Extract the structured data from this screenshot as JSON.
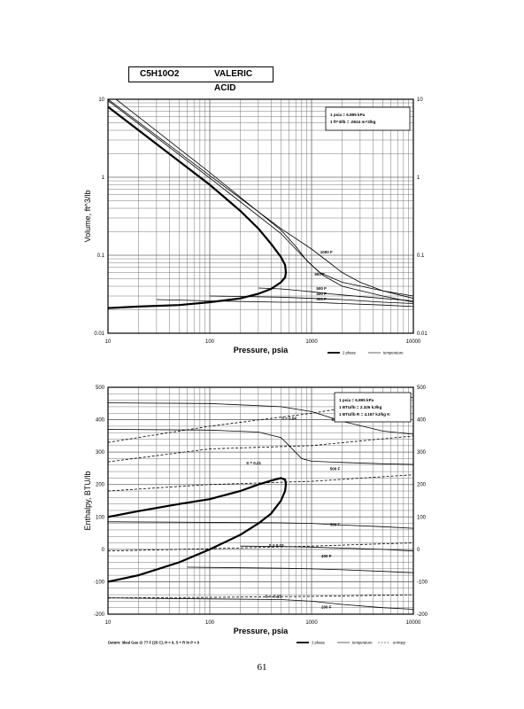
{
  "header": {
    "formula": "C5H10O2",
    "name": "VALERIC ACID"
  },
  "page_number": "61",
  "chart_data": [
    {
      "type": "line",
      "xlabel": "Pressure, psia",
      "ylabel": "Volume, ft^3/lb",
      "x_scale": "log",
      "y_scale": "log",
      "xlim": [
        10,
        10000
      ],
      "ylim": [
        0.01,
        10
      ],
      "x_ticks": [
        "10",
        "100",
        "1000",
        "10000"
      ],
      "y_ticks": [
        "0.01",
        "0.1",
        "1",
        "10"
      ],
      "conversion_note": [
        "1 psia = 6.895 kPa",
        "1 ft^3/lb = .0624 m^3/kg"
      ],
      "legend": [
        "2 phase",
        "temperature"
      ],
      "colors": {
        "line": "#000000",
        "grid": "#555555"
      },
      "series": [
        {
          "name": "2 phase",
          "x": [
            10,
            20,
            50,
            100,
            200,
            300,
            400,
            500,
            550,
            560,
            550,
            500,
            400,
            300,
            200,
            100,
            50,
            20,
            10
          ],
          "y": [
            8,
            4,
            1.6,
            0.8,
            0.37,
            0.22,
            0.14,
            0.095,
            0.075,
            0.06,
            0.052,
            0.045,
            0.037,
            0.032,
            0.028,
            0.025,
            0.023,
            0.022,
            0.021
          ]
        },
        {
          "name": "1000 F",
          "x": [
            10,
            100,
            500,
            1000,
            1500,
            2000,
            3000,
            5000,
            10000
          ],
          "y": [
            10,
            1.05,
            0.22,
            0.12,
            0.08,
            0.06,
            0.045,
            0.035,
            0.028
          ]
        },
        {
          "name": "900 F",
          "x": [
            10,
            100,
            500,
            800,
            1000,
            1300,
            2000,
            5000,
            10000
          ],
          "y": [
            9.6,
            0.98,
            0.19,
            0.1,
            0.075,
            0.055,
            0.04,
            0.03,
            0.025
          ]
        },
        {
          "name": "temperature",
          "x": [
            12,
            100,
            500,
            700,
            900,
            1200,
            2000,
            5000,
            10000
          ],
          "y": [
            10,
            1.15,
            0.21,
            0.13,
            0.085,
            0.06,
            0.045,
            0.035,
            0.03
          ]
        },
        {
          "name": "500 F",
          "x": [
            300,
            500,
            800,
            1000,
            1500,
            2000,
            5000,
            10000
          ],
          "y": [
            0.038,
            0.037,
            0.035,
            0.034,
            0.032,
            0.031,
            0.028,
            0.026
          ]
        },
        {
          "name": "400 F",
          "x": [
            100,
            500,
            1000,
            2000,
            5000,
            10000
          ],
          "y": [
            0.03,
            0.029,
            0.028,
            0.027,
            0.025,
            0.024
          ]
        },
        {
          "name": "300 F",
          "x": [
            30,
            100,
            500,
            1000,
            2000,
            5000,
            10000
          ],
          "y": [
            0.027,
            0.026,
            0.025,
            0.025,
            0.024,
            0.023,
            0.022
          ]
        }
      ],
      "annotations": [
        "1000 F",
        "900 F",
        "500 F",
        "400 F",
        "300 F"
      ]
    },
    {
      "type": "line",
      "xlabel": "Pressure, psia",
      "ylabel": "Enthalpy, BTU/lb",
      "x_scale": "log",
      "y_scale": "linear",
      "xlim": [
        10,
        10000
      ],
      "ylim": [
        -200,
        500
      ],
      "x_ticks": [
        "10",
        "100",
        "1000",
        "10000"
      ],
      "y_ticks": [
        "-200",
        "-100",
        "0",
        "100",
        "200",
        "300",
        "400",
        "500"
      ],
      "conversion_note": [
        "1 psia = 6.895 kPa",
        "1 BTU/lb = 2.326 kJ/kg",
        "1 BTU/lb R = 4.187 kJ/kg K"
      ],
      "legend": [
        "2 phase",
        "temperature",
        "entropy"
      ],
      "footnote": "Datum: Ideal Gas @ 77 F (25 C), H = 0, S + R ln P = 0",
      "series": [
        {
          "name": "2 phase",
          "x": [
            10,
            20,
            50,
            100,
            200,
            300,
            400,
            500,
            550,
            560,
            550,
            500,
            400,
            300,
            200,
            100,
            50,
            20,
            10
          ],
          "y": [
            100,
            118,
            140,
            155,
            180,
            200,
            212,
            220,
            215,
            200,
            180,
            150,
            110,
            80,
            45,
            0,
            -40,
            -80,
            -100
          ]
        },
        {
          "name": "1000 F",
          "x": [
            10,
            100,
            500,
            1000,
            2000,
            5000,
            10000
          ],
          "y": [
            452,
            450,
            440,
            425,
            395,
            365,
            355
          ]
        },
        {
          "name": "temperature",
          "x": [
            10,
            100,
            300,
            500,
            600,
            800,
            1000,
            2000,
            5000,
            10000
          ],
          "y": [
            370,
            368,
            362,
            345,
            320,
            280,
            272,
            268,
            264,
            262
          ]
        },
        {
          "name": "500 F",
          "x": [
            10,
            500,
            1000,
            2000,
            5000,
            10000
          ],
          "y": [
            85,
            82,
            80,
            75,
            70,
            65
          ]
        },
        {
          "name": "400 F",
          "x": [
            200,
            500,
            1000,
            2000,
            5000,
            10000
          ],
          "y": [
            10,
            9,
            7,
            4,
            0,
            -5
          ]
        },
        {
          "name": "300 F",
          "x": [
            60,
            500,
            1000,
            2000,
            5000,
            10000
          ],
          "y": [
            -55,
            -58,
            -60,
            -63,
            -68,
            -72
          ]
        },
        {
          "name": "200 F",
          "x": [
            10,
            500,
            1000,
            2000,
            5000,
            10000
          ],
          "y": [
            -150,
            -155,
            -160,
            -170,
            -180,
            -185
          ]
        },
        {
          "name": "S = 0.04",
          "x": [
            10,
            100,
            1000,
            10000
          ],
          "y": [
            330,
            380,
            420,
            470
          ],
          "style": "dashed"
        },
        {
          "name": "S = 0.21",
          "x": [
            10,
            100,
            1000,
            10000
          ],
          "y": [
            270,
            310,
            320,
            350
          ],
          "style": "dashed"
        },
        {
          "name": "entropy",
          "x": [
            10,
            100,
            1000,
            10000
          ],
          "y": [
            180,
            200,
            210,
            230
          ],
          "style": "dashed"
        },
        {
          "name": "S = 0.03",
          "x": [
            10,
            100,
            1000,
            10000
          ],
          "y": [
            -5,
            2,
            10,
            20
          ],
          "style": "dashed"
        },
        {
          "name": "S = -0.15",
          "x": [
            10,
            100,
            1000,
            10000
          ],
          "y": [
            -150,
            -148,
            -145,
            -140
          ],
          "style": "dashed"
        }
      ],
      "annotations": [
        "1000 F",
        "500 F",
        "300 F",
        "400 F",
        "200 F",
        "S = 0.04",
        "S = 0.21",
        "S = 0.03",
        "S = -0.15"
      ]
    }
  ]
}
